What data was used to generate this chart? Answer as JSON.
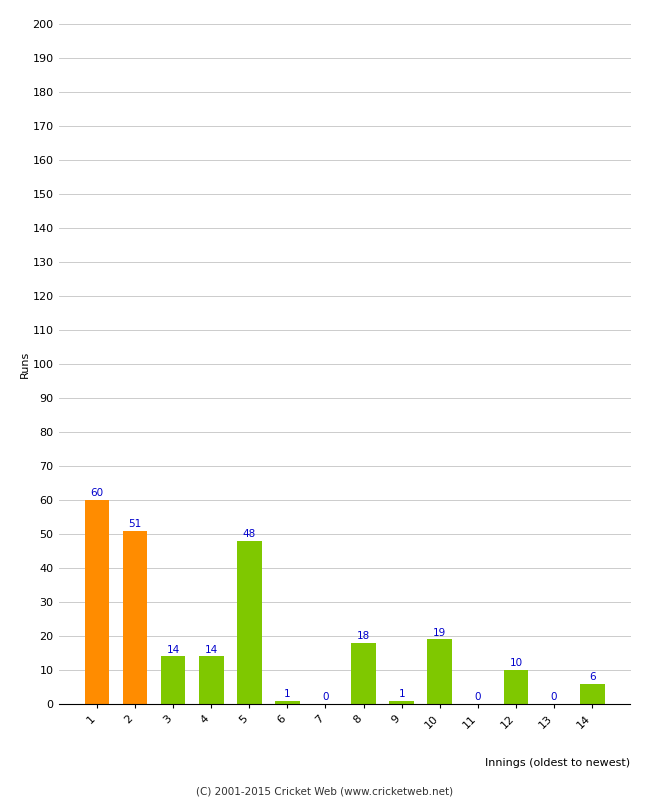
{
  "categories": [
    "1",
    "2",
    "3",
    "4",
    "5",
    "6",
    "7",
    "8",
    "9",
    "10",
    "11",
    "12",
    "13",
    "14"
  ],
  "values": [
    60,
    51,
    14,
    14,
    48,
    1,
    0,
    18,
    1,
    19,
    0,
    10,
    0,
    6
  ],
  "bar_colors": [
    "#ff8c00",
    "#ff8c00",
    "#7fc800",
    "#7fc800",
    "#7fc800",
    "#7fc800",
    "#7fc800",
    "#7fc800",
    "#7fc800",
    "#7fc800",
    "#7fc800",
    "#7fc800",
    "#7fc800",
    "#7fc800"
  ],
  "xlabel": "Innings (oldest to newest)",
  "ylabel": "Runs",
  "ylim": [
    0,
    200
  ],
  "yticks": [
    0,
    10,
    20,
    30,
    40,
    50,
    60,
    70,
    80,
    90,
    100,
    110,
    120,
    130,
    140,
    150,
    160,
    170,
    180,
    190,
    200
  ],
  "label_color": "#0000cc",
  "label_fontsize": 7.5,
  "axis_fontsize": 8,
  "tick_fontsize": 8,
  "footer": "(C) 2001-2015 Cricket Web (www.cricketweb.net)",
  "footer_fontsize": 7.5,
  "background_color": "#ffffff",
  "grid_color": "#cccccc",
  "bar_width": 0.65
}
